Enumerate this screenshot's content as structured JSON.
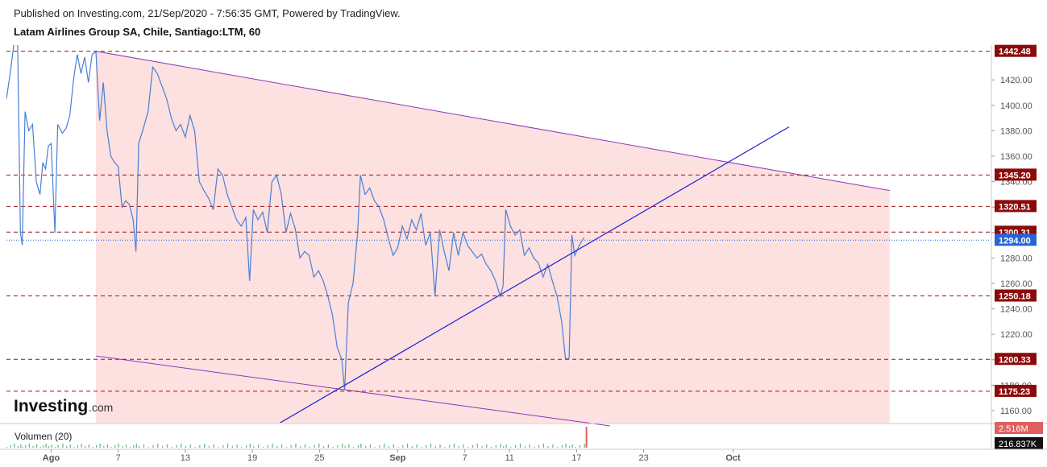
{
  "header": {
    "published": "Published on Investing.com, 21/Sep/2020 - 7:56:35 GMT, Powered by TradingView.",
    "instrument": "Latam Airlines Group SA, Chile, Santiago:LTM, 60"
  },
  "logo": {
    "brand": "Investing",
    "suffix": ".com"
  },
  "colors": {
    "price_line": "#4a7fd4",
    "channel_fill": "#fde0e0",
    "channel_line": "#8a3ab9",
    "trend_line": "#1f1fd6",
    "level_line": "#9b1414",
    "level_badge": "#8b0a0a",
    "current_badge": "#2a63d4",
    "volume_bar": "#6ab07a"
  },
  "chart_data": {
    "type": "line",
    "title": "Latam Airlines Group SA, Chile, Santiago:LTM, 60",
    "ylim": [
      1148,
      1448
    ],
    "y_ticks": [
      1160,
      1180,
      1200,
      1220,
      1240,
      1260,
      1280,
      1300,
      1320,
      1340,
      1360,
      1380,
      1400,
      1420
    ],
    "x_ticks": [
      {
        "label": "Ago",
        "date": "2020-08-01"
      },
      {
        "label": "7",
        "date": "2020-08-07"
      },
      {
        "label": "13",
        "date": "2020-08-13"
      },
      {
        "label": "19",
        "date": "2020-08-19"
      },
      {
        "label": "25",
        "date": "2020-08-25"
      },
      {
        "label": "Sep",
        "date": "2020-09-01"
      },
      {
        "label": "7",
        "date": "2020-09-07"
      },
      {
        "label": "11",
        "date": "2020-09-11"
      },
      {
        "label": "17",
        "date": "2020-09-17"
      },
      {
        "label": "23",
        "date": "2020-09-23"
      },
      {
        "label": "Oct",
        "date": "2020-10-01"
      }
    ],
    "series": [
      {
        "values": [
          [
            "2020-07-28T00:00",
            1405
          ],
          [
            "2020-07-28T08:00",
            1425
          ],
          [
            "2020-07-28T16:00",
            1448
          ],
          [
            "2020-07-29T00:00",
            1448
          ],
          [
            "2020-07-29T06:00",
            1300
          ],
          [
            "2020-07-29T10:00",
            1290
          ],
          [
            "2020-07-29T16:00",
            1395
          ],
          [
            "2020-07-30T00:00",
            1380
          ],
          [
            "2020-07-30T08:00",
            1385
          ],
          [
            "2020-07-30T16:00",
            1340
          ],
          [
            "2020-07-31T00:00",
            1330
          ],
          [
            "2020-07-31T06:00",
            1355
          ],
          [
            "2020-07-31T12:00",
            1350
          ],
          [
            "2020-07-31T18:00",
            1368
          ],
          [
            "2020-08-01T00:00",
            1370
          ],
          [
            "2020-08-01T08:00",
            1300
          ],
          [
            "2020-08-01T14:00",
            1385
          ],
          [
            "2020-08-02T00:00",
            1378
          ],
          [
            "2020-08-02T08:00",
            1382
          ],
          [
            "2020-08-02T16:00",
            1392
          ],
          [
            "2020-08-03T00:00",
            1420
          ],
          [
            "2020-08-03T08:00",
            1440
          ],
          [
            "2020-08-03T16:00",
            1425
          ],
          [
            "2020-08-04T00:00",
            1438
          ],
          [
            "2020-08-04T08:00",
            1418
          ],
          [
            "2020-08-04T16:00",
            1440
          ],
          [
            "2020-08-05T00:00",
            1442
          ],
          [
            "2020-08-05T08:00",
            1388
          ],
          [
            "2020-08-05T16:00",
            1418
          ],
          [
            "2020-08-06T00:00",
            1380
          ],
          [
            "2020-08-06T08:00",
            1360
          ],
          [
            "2020-08-06T16:00",
            1355
          ],
          [
            "2020-08-07T00:00",
            1352
          ],
          [
            "2020-08-07T08:00",
            1320
          ],
          [
            "2020-08-07T16:00",
            1325
          ],
          [
            "2020-08-08T00:00",
            1322
          ],
          [
            "2020-08-08T08:00",
            1310
          ],
          [
            "2020-08-08T14:00",
            1285
          ],
          [
            "2020-08-08T20:00",
            1370
          ],
          [
            "2020-08-09T06:00",
            1382
          ],
          [
            "2020-08-09T16:00",
            1395
          ],
          [
            "2020-08-10T02:00",
            1430
          ],
          [
            "2020-08-10T12:00",
            1425
          ],
          [
            "2020-08-10T22:00",
            1415
          ],
          [
            "2020-08-11T08:00",
            1405
          ],
          [
            "2020-08-11T18:00",
            1390
          ],
          [
            "2020-08-12T04:00",
            1380
          ],
          [
            "2020-08-12T14:00",
            1385
          ],
          [
            "2020-08-13T00:00",
            1375
          ],
          [
            "2020-08-13T10:00",
            1392
          ],
          [
            "2020-08-13T20:00",
            1380
          ],
          [
            "2020-08-14T06:00",
            1340
          ],
          [
            "2020-08-14T16:00",
            1333
          ],
          [
            "2020-08-15T02:00",
            1327
          ],
          [
            "2020-08-15T12:00",
            1318
          ],
          [
            "2020-08-15T22:00",
            1350
          ],
          [
            "2020-08-16T08:00",
            1345
          ],
          [
            "2020-08-16T18:00",
            1330
          ],
          [
            "2020-08-17T04:00",
            1320
          ],
          [
            "2020-08-17T14:00",
            1310
          ],
          [
            "2020-08-18T00:00",
            1305
          ],
          [
            "2020-08-18T10:00",
            1312
          ],
          [
            "2020-08-18T18:00",
            1262
          ],
          [
            "2020-08-19T02:00",
            1318
          ],
          [
            "2020-08-19T12:00",
            1310
          ],
          [
            "2020-08-19T22:00",
            1316
          ],
          [
            "2020-08-20T08:00",
            1300
          ],
          [
            "2020-08-20T18:00",
            1340
          ],
          [
            "2020-08-21T04:00",
            1345
          ],
          [
            "2020-08-21T14:00",
            1330
          ],
          [
            "2020-08-22T00:00",
            1300
          ],
          [
            "2020-08-22T10:00",
            1315
          ],
          [
            "2020-08-22T20:00",
            1303
          ],
          [
            "2020-08-23T06:00",
            1280
          ],
          [
            "2020-08-23T16:00",
            1285
          ],
          [
            "2020-08-24T02:00",
            1282
          ],
          [
            "2020-08-24T12:00",
            1265
          ],
          [
            "2020-08-24T22:00",
            1270
          ],
          [
            "2020-08-25T08:00",
            1262
          ],
          [
            "2020-08-25T18:00",
            1250
          ],
          [
            "2020-08-26T04:00",
            1235
          ],
          [
            "2020-08-26T14:00",
            1210
          ],
          [
            "2020-08-27T00:00",
            1200
          ],
          [
            "2020-08-27T06:00",
            1176
          ],
          [
            "2020-08-27T14:00",
            1245
          ],
          [
            "2020-08-28T00:00",
            1260
          ],
          [
            "2020-08-28T10:00",
            1300
          ],
          [
            "2020-08-28T16:00",
            1345
          ],
          [
            "2020-08-29T02:00",
            1330
          ],
          [
            "2020-08-29T12:00",
            1335
          ],
          [
            "2020-08-29T22:00",
            1325
          ],
          [
            "2020-08-30T08:00",
            1320
          ],
          [
            "2020-08-30T18:00",
            1310
          ],
          [
            "2020-08-31T04:00",
            1295
          ],
          [
            "2020-08-31T14:00",
            1282
          ],
          [
            "2020-09-01T00:00",
            1288
          ],
          [
            "2020-09-01T10:00",
            1305
          ],
          [
            "2020-09-01T20:00",
            1295
          ],
          [
            "2020-09-02T06:00",
            1310
          ],
          [
            "2020-09-02T16:00",
            1302
          ],
          [
            "2020-09-03T02:00",
            1315
          ],
          [
            "2020-09-03T12:00",
            1290
          ],
          [
            "2020-09-03T22:00",
            1300
          ],
          [
            "2020-09-04T08:00",
            1250
          ],
          [
            "2020-09-04T18:00",
            1302
          ],
          [
            "2020-09-05T04:00",
            1285
          ],
          [
            "2020-09-05T14:00",
            1270
          ],
          [
            "2020-09-06T00:00",
            1300
          ],
          [
            "2020-09-06T10:00",
            1282
          ],
          [
            "2020-09-06T20:00",
            1300
          ],
          [
            "2020-09-07T06:00",
            1290
          ],
          [
            "2020-09-07T16:00",
            1285
          ],
          [
            "2020-09-08T02:00",
            1280
          ],
          [
            "2020-09-08T12:00",
            1283
          ],
          [
            "2020-09-08T22:00",
            1275
          ],
          [
            "2020-09-09T08:00",
            1270
          ],
          [
            "2020-09-09T18:00",
            1262
          ],
          [
            "2020-09-10T04:00",
            1250
          ],
          [
            "2020-09-10T10:00",
            1258
          ],
          [
            "2020-09-10T16:00",
            1318
          ],
          [
            "2020-09-11T02:00",
            1305
          ],
          [
            "2020-09-11T12:00",
            1298
          ],
          [
            "2020-09-11T22:00",
            1302
          ],
          [
            "2020-09-12T08:00",
            1282
          ],
          [
            "2020-09-12T18:00",
            1288
          ],
          [
            "2020-09-13T04:00",
            1280
          ],
          [
            "2020-09-13T14:00",
            1276
          ],
          [
            "2020-09-14T00:00",
            1265
          ],
          [
            "2020-09-14T10:00",
            1275
          ],
          [
            "2020-09-14T20:00",
            1262
          ],
          [
            "2020-09-15T06:00",
            1250
          ],
          [
            "2020-09-15T16:00",
            1230
          ],
          [
            "2020-09-16T00:00",
            1201
          ],
          [
            "2020-09-16T08:00",
            1201
          ],
          [
            "2020-09-16T14:00",
            1298
          ],
          [
            "2020-09-16T20:00",
            1282
          ],
          [
            "2020-09-17T06:00",
            1290
          ],
          [
            "2020-09-17T16:00",
            1296
          ]
        ]
      }
    ],
    "levels": [
      {
        "label": "1442.48",
        "value": 1442.48
      },
      {
        "label": "1345.20",
        "value": 1345.2
      },
      {
        "label": "1320.51",
        "value": 1320.51
      },
      {
        "label": "1300.31",
        "value": 1300.31
      },
      {
        "label": "1250.18",
        "value": 1250.18
      },
      {
        "label": "1200.33",
        "value": 1200.33
      },
      {
        "label": "1175.23",
        "value": 1175.23
      }
    ],
    "current": {
      "label": "1294.00",
      "value": 1294.0
    },
    "channel": {
      "upper": [
        [
          "2020-08-05T00:00",
          1442.5
        ],
        [
          "2020-10-15T00:00",
          1333
        ]
      ],
      "lower": [
        [
          "2020-08-05T00:00",
          1203
        ],
        [
          "2020-09-20T00:00",
          1148
        ]
      ],
      "fill_until": "2020-10-15T00:00"
    },
    "trendline": [
      [
        "2020-08-21T00:00",
        1148
      ],
      [
        "2020-10-06T00:00",
        1383
      ]
    ],
    "volume": {
      "label": "Volumen (20)",
      "max_label": "2.516M",
      "last_label": "216.837K",
      "max_value": 2516000,
      "last_value": 216837
    }
  }
}
